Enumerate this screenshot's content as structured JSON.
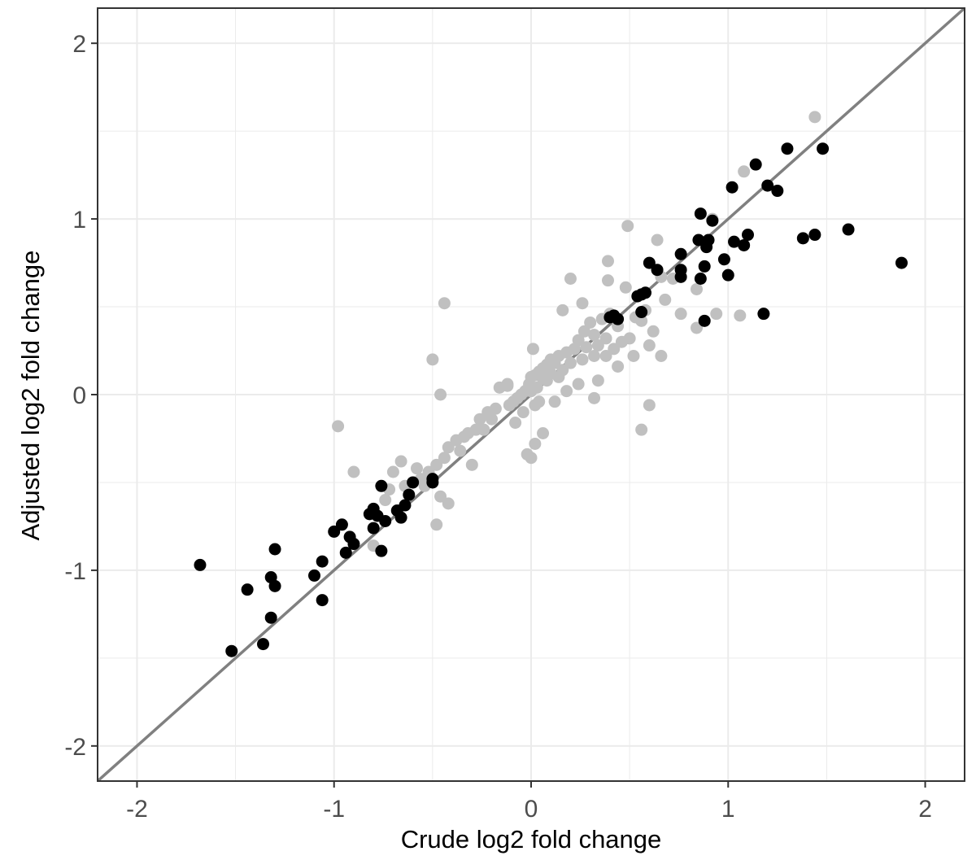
{
  "chart_data": {
    "type": "scatter",
    "title": "",
    "xlabel": "Crude log2 fold change",
    "ylabel": "Adjusted log2 fold change",
    "xlim": [
      -2.2,
      2.2
    ],
    "ylim": [
      -2.2,
      2.2
    ],
    "x_ticks": [
      -2,
      -1,
      0,
      1,
      2
    ],
    "y_ticks": [
      -2,
      -1,
      0,
      1,
      2
    ],
    "x_tick_labels": [
      "-2",
      "-1",
      "0",
      "1",
      "2"
    ],
    "y_tick_labels": [
      "-2",
      "-1",
      "0",
      "1",
      "2"
    ],
    "grid": true,
    "legend": "none",
    "reference_line": {
      "slope": 1,
      "intercept": 0,
      "color": "#808080"
    },
    "colors": {
      "black_points": "#000000",
      "grey_points": "#c0c0c0",
      "panel_border": "#333333",
      "grid": "#ebebeb"
    },
    "series": [
      {
        "color": "#c0c0c0",
        "points": [
          [
            1.44,
            1.58
          ],
          [
            1.08,
            1.27
          ],
          [
            0.49,
            0.96
          ],
          [
            0.64,
            0.88
          ],
          [
            0.92,
            1.0
          ],
          [
            0.39,
            0.76
          ],
          [
            0.2,
            0.66
          ],
          [
            0.48,
            0.61
          ],
          [
            0.39,
            0.65
          ],
          [
            0.66,
            0.67
          ],
          [
            -0.44,
            0.52
          ],
          [
            0.16,
            0.48
          ],
          [
            0.53,
            0.44
          ],
          [
            0.36,
            0.43
          ],
          [
            0.3,
            0.41
          ],
          [
            0.27,
            0.36
          ],
          [
            0.4,
            0.46
          ],
          [
            0.44,
            0.39
          ],
          [
            0.32,
            0.34
          ],
          [
            0.38,
            0.32
          ],
          [
            0.24,
            0.31
          ],
          [
            0.28,
            0.27
          ],
          [
            0.22,
            0.26
          ],
          [
            0.18,
            0.24
          ],
          [
            0.14,
            0.22
          ],
          [
            0.1,
            0.2
          ],
          [
            0.12,
            0.18
          ],
          [
            0.08,
            0.17
          ],
          [
            0.06,
            0.15
          ],
          [
            0.04,
            0.13
          ],
          [
            0.02,
            0.11
          ],
          [
            0.0,
            0.1
          ],
          [
            0.01,
            0.26
          ],
          [
            -0.01,
            0.06
          ],
          [
            0.03,
            0.04
          ],
          [
            -0.03,
            0.02
          ],
          [
            -0.05,
            0.0
          ],
          [
            -0.07,
            -0.02
          ],
          [
            -0.09,
            -0.04
          ],
          [
            -0.11,
            -0.06
          ],
          [
            -0.12,
            0.05
          ],
          [
            -0.16,
            0.04
          ],
          [
            -0.18,
            -0.08
          ],
          [
            -0.22,
            -0.1
          ],
          [
            -0.26,
            -0.14
          ],
          [
            -0.28,
            -0.2
          ],
          [
            -0.32,
            -0.22
          ],
          [
            -0.34,
            -0.24
          ],
          [
            -0.38,
            -0.26
          ],
          [
            -0.36,
            -0.32
          ],
          [
            -0.42,
            -0.3
          ],
          [
            -0.44,
            -0.36
          ],
          [
            -0.48,
            -0.4
          ],
          [
            -0.52,
            -0.44
          ],
          [
            -0.56,
            -0.48
          ],
          [
            -0.6,
            -0.5
          ],
          [
            -0.64,
            -0.52
          ],
          [
            -0.66,
            -0.38
          ],
          [
            -0.7,
            -0.44
          ],
          [
            -0.74,
            -0.6
          ],
          [
            -0.46,
            -0.58
          ],
          [
            -0.42,
            -0.62
          ],
          [
            -0.48,
            -0.74
          ],
          [
            -0.98,
            -0.18
          ],
          [
            -0.9,
            -0.44
          ],
          [
            -0.8,
            -0.86
          ],
          [
            -0.3,
            -0.4
          ],
          [
            -0.54,
            -0.52
          ],
          [
            -0.58,
            -0.42
          ],
          [
            -0.72,
            -0.54
          ],
          [
            0.12,
            -0.04
          ],
          [
            0.02,
            -0.06
          ],
          [
            -0.02,
            -0.34
          ],
          [
            0.0,
            -0.36
          ],
          [
            0.04,
            -0.04
          ],
          [
            0.08,
            0.08
          ],
          [
            0.16,
            0.14
          ],
          [
            0.2,
            0.18
          ],
          [
            0.26,
            0.2
          ],
          [
            0.32,
            0.22
          ],
          [
            0.34,
            0.28
          ],
          [
            0.42,
            0.26
          ],
          [
            0.46,
            0.3
          ],
          [
            0.5,
            0.32
          ],
          [
            0.56,
            0.42
          ],
          [
            0.62,
            0.36
          ],
          [
            0.6,
            0.28
          ],
          [
            0.66,
            0.22
          ],
          [
            0.52,
            0.22
          ],
          [
            0.44,
            0.16
          ],
          [
            0.38,
            0.22
          ],
          [
            0.34,
            0.08
          ],
          [
            0.24,
            0.06
          ],
          [
            0.18,
            0.02
          ],
          [
            0.14,
            0.1
          ],
          [
            0.1,
            0.12
          ],
          [
            0.06,
            0.09
          ],
          [
            0.0,
            0.02
          ],
          [
            -0.04,
            -0.1
          ],
          [
            -0.08,
            -0.16
          ],
          [
            0.32,
            -0.02
          ],
          [
            0.6,
            -0.06
          ],
          [
            0.56,
            -0.2
          ],
          [
            0.06,
            -0.22
          ],
          [
            0.02,
            -0.28
          ],
          [
            -0.12,
            0.06
          ],
          [
            -0.2,
            -0.14
          ],
          [
            -0.24,
            -0.2
          ],
          [
            -0.5,
            0.2
          ],
          [
            -0.46,
            0.0
          ],
          [
            0.76,
            0.46
          ],
          [
            0.84,
            0.38
          ],
          [
            0.94,
            0.46
          ],
          [
            1.06,
            0.45
          ],
          [
            0.84,
            0.6
          ],
          [
            0.72,
            0.66
          ],
          [
            0.58,
            0.48
          ],
          [
            0.68,
            0.54
          ],
          [
            0.26,
            0.52
          ],
          [
            0.06,
            0.14
          ]
        ]
      },
      {
        "color": "#000000",
        "points": [
          [
            1.3,
            1.4
          ],
          [
            1.48,
            1.4
          ],
          [
            1.14,
            1.31
          ],
          [
            1.02,
            1.18
          ],
          [
            1.2,
            1.19
          ],
          [
            1.25,
            1.16
          ],
          [
            0.86,
            1.03
          ],
          [
            0.92,
            0.99
          ],
          [
            0.85,
            0.88
          ],
          [
            0.9,
            0.88
          ],
          [
            0.89,
            0.84
          ],
          [
            1.1,
            0.91
          ],
          [
            1.03,
            0.87
          ],
          [
            1.08,
            0.85
          ],
          [
            1.38,
            0.89
          ],
          [
            1.44,
            0.91
          ],
          [
            1.61,
            0.94
          ],
          [
            1.88,
            0.75
          ],
          [
            0.76,
            0.8
          ],
          [
            0.98,
            0.77
          ],
          [
            0.6,
            0.75
          ],
          [
            0.64,
            0.71
          ],
          [
            0.76,
            0.71
          ],
          [
            0.76,
            0.67
          ],
          [
            0.88,
            0.73
          ],
          [
            0.86,
            0.66
          ],
          [
            1.0,
            0.68
          ],
          [
            0.56,
            0.57
          ],
          [
            0.54,
            0.56
          ],
          [
            0.58,
            0.58
          ],
          [
            0.4,
            0.44
          ],
          [
            0.42,
            0.45
          ],
          [
            0.44,
            0.43
          ],
          [
            0.56,
            0.47
          ],
          [
            0.88,
            0.42
          ],
          [
            1.18,
            0.46
          ],
          [
            -0.5,
            -0.5
          ],
          [
            -0.5,
            -0.48
          ],
          [
            -0.6,
            -0.5
          ],
          [
            -0.62,
            -0.57
          ],
          [
            -0.64,
            -0.63
          ],
          [
            -0.76,
            -0.52
          ],
          [
            -0.8,
            -0.65
          ],
          [
            -0.82,
            -0.68
          ],
          [
            -0.78,
            -0.69
          ],
          [
            -0.68,
            -0.66
          ],
          [
            -0.66,
            -0.7
          ],
          [
            -0.74,
            -0.72
          ],
          [
            -0.8,
            -0.76
          ],
          [
            -0.76,
            -0.89
          ],
          [
            -0.96,
            -0.74
          ],
          [
            -1.0,
            -0.78
          ],
          [
            -0.92,
            -0.81
          ],
          [
            -0.9,
            -0.85
          ],
          [
            -0.94,
            -0.9
          ],
          [
            -1.06,
            -0.95
          ],
          [
            -1.1,
            -1.03
          ],
          [
            -1.3,
            -0.88
          ],
          [
            -1.32,
            -1.04
          ],
          [
            -1.3,
            -1.09
          ],
          [
            -1.44,
            -1.11
          ],
          [
            -1.06,
            -1.17
          ],
          [
            -1.32,
            -1.27
          ],
          [
            -1.36,
            -1.42
          ],
          [
            -1.52,
            -1.46
          ],
          [
            -1.68,
            -0.97
          ]
        ]
      }
    ]
  }
}
